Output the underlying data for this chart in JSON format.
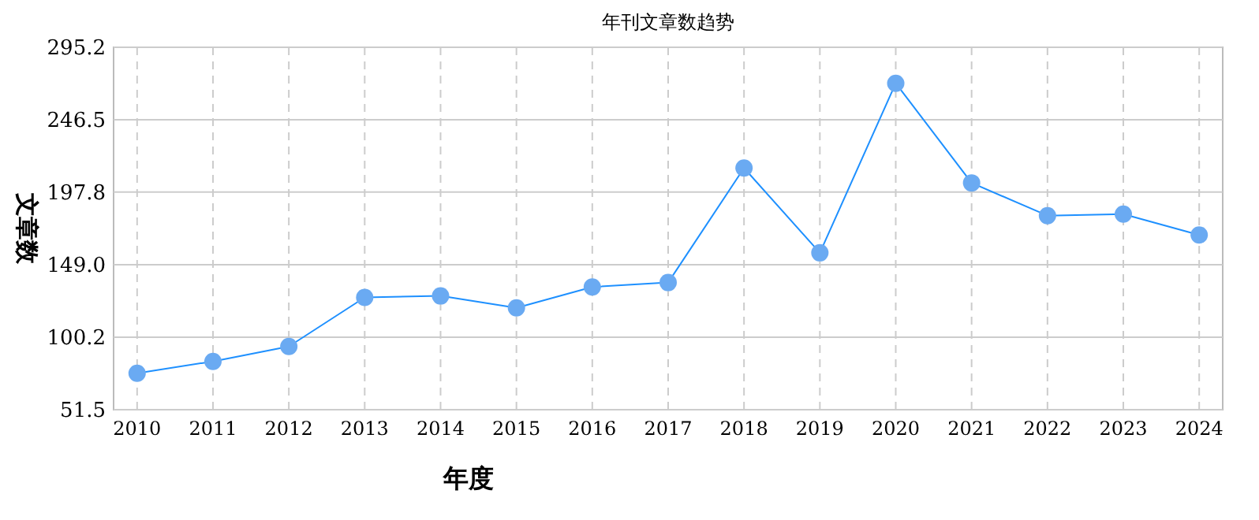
{
  "chart_data": {
    "type": "line",
    "title": "年刊文章数趋势",
    "xlabel": "年度",
    "ylabel": "文章数",
    "categories": [
      "2010",
      "2011",
      "2012",
      "2013",
      "2014",
      "2015",
      "2016",
      "2017",
      "2018",
      "2019",
      "2020",
      "2021",
      "2022",
      "2023",
      "2024"
    ],
    "series": [
      {
        "color": "#1e90ff",
        "values": [
          76,
          84,
          94,
          127,
          128,
          120,
          134,
          137,
          214,
          157,
          271,
          204,
          182,
          183,
          169
        ]
      }
    ],
    "ylim": [
      51.5,
      295.2
    ],
    "yticks": [
      {
        "value": 51.5,
        "label": "51.5"
      },
      {
        "value": 100.2,
        "label": "100.2"
      },
      {
        "value": 149.0,
        "label": "149.0"
      },
      {
        "value": 197.8,
        "label": "197.8"
      },
      {
        "value": 246.5,
        "label": "246.5"
      },
      {
        "value": 295.2,
        "label": "295.2"
      }
    ],
    "grid": true,
    "marker": "circle",
    "line_style": "solid"
  }
}
